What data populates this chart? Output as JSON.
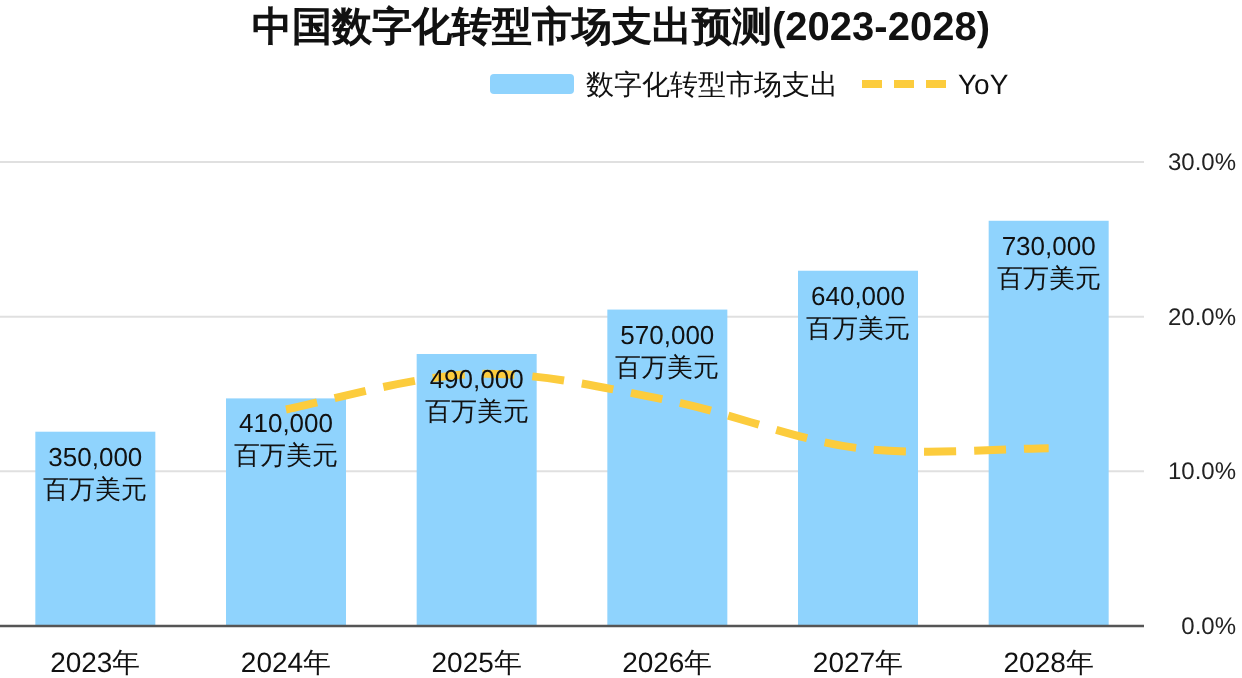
{
  "chart_data": {
    "type": "bar",
    "title": "中国数字化转型市场支出预测(2023-2028)",
    "categories": [
      "2023年",
      "2024年",
      "2025年",
      "2026年",
      "2027年",
      "2028年"
    ],
    "series": [
      {
        "name": "数字化转型市场支出",
        "color": "#8fd3fd",
        "values": [
          350000,
          410000,
          490000,
          570000,
          640000,
          730000
        ],
        "value_labels": [
          "350,000\n百万美元",
          "410,000\n百万美元",
          "490,000\n百万美元",
          "570,000\n百万美元",
          "640,000\n百万美元",
          "730,000\n百万美元"
        ]
      },
      {
        "name": "YoY",
        "type": "line",
        "axis": "y2",
        "color": "#fccc3d",
        "line_style": "dashed",
        "marker": "none",
        "values": [
          null,
          14.0,
          16.3,
          14.6,
          11.5,
          11.5
        ]
      }
    ],
    "y2lim": [
      0,
      30
    ],
    "y2ticks": [
      {
        "value": 0,
        "label": "0.0%"
      },
      {
        "value": 10,
        "label": "10.0%"
      },
      {
        "value": 20,
        "label": "20.0%"
      },
      {
        "value": 30,
        "label": "30.0%"
      }
    ],
    "grid": "y",
    "legend": "top"
  }
}
